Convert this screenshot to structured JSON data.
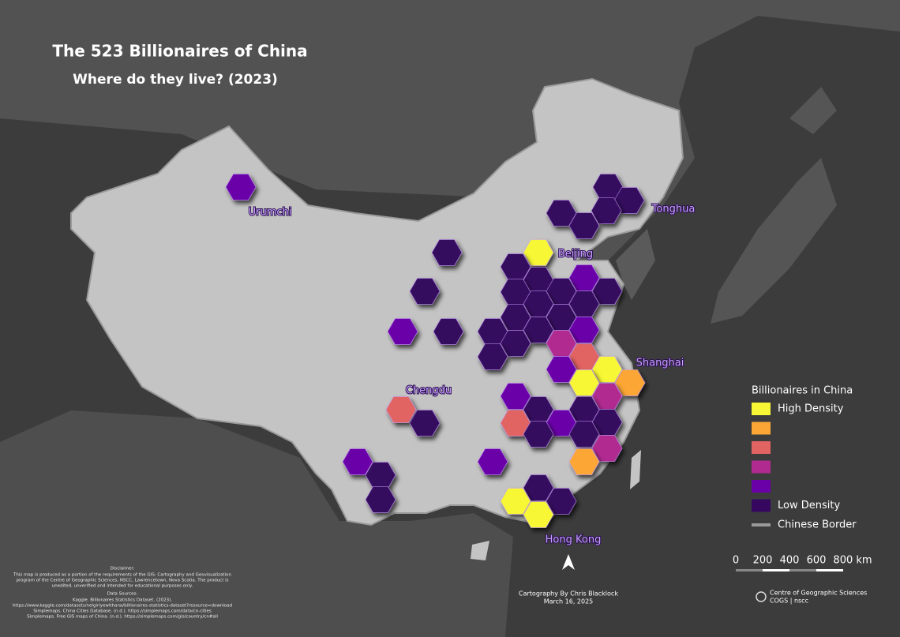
{
  "title": "The 523 Billionaires of China",
  "subtitle": "Where do they live? (2023)",
  "cities": [
    "Urumchi",
    "Tonghua",
    "Beijing",
    "Shanghai",
    "Chengdu",
    "Hong Kong"
  ],
  "legend": {
    "title": "Billionaires in China",
    "items": [
      {
        "color": "#f7f735",
        "label": "High Density"
      },
      {
        "color": "#fca636"
      },
      {
        "color": "#e16462"
      },
      {
        "color": "#b12a90"
      },
      {
        "color": "#6a00a8"
      },
      {
        "color": "#35075f",
        "label": "Low Density"
      }
    ],
    "border": {
      "color": "#9a9a9a",
      "label": "Chinese Border"
    }
  },
  "scale": {
    "labels": [
      "0",
      "200",
      "400",
      "600",
      "800 km"
    ]
  },
  "disclaimer": {
    "heading": "Disclaimer:",
    "lines": [
      "This map is produced as a portion of the requirements of the GIS: Cartography and Geovisualization",
      "program of the Centre of Geographic Sciences, NSCC, Lawrencetown, Nova Scotia. The product is",
      "unedited, unverified and intended for educational purposes only."
    ]
  },
  "sources": {
    "heading": "Data Sources:",
    "lines": [
      "Kaggle. Billionaires Statistics Dataset. (2023).",
      "https://www.kaggle.com/datasets/nelgiriyewithana/billionaires-statistics-dataset?resource=download",
      "Simplemaps. China Cities Database. (n.d.). https://simplemaps.com/data/cn-cities",
      "Simplemaps. Free GIS maps of China. (n.d.). https://simplemaps.com/gis/country/cn#all"
    ]
  },
  "credit": {
    "author": "Cartography By Chris Blacklock",
    "date": "March 16, 2025"
  },
  "logo": {
    "name": "Centre of Geographic Sciences",
    "sub": "COGS | nscc"
  }
}
